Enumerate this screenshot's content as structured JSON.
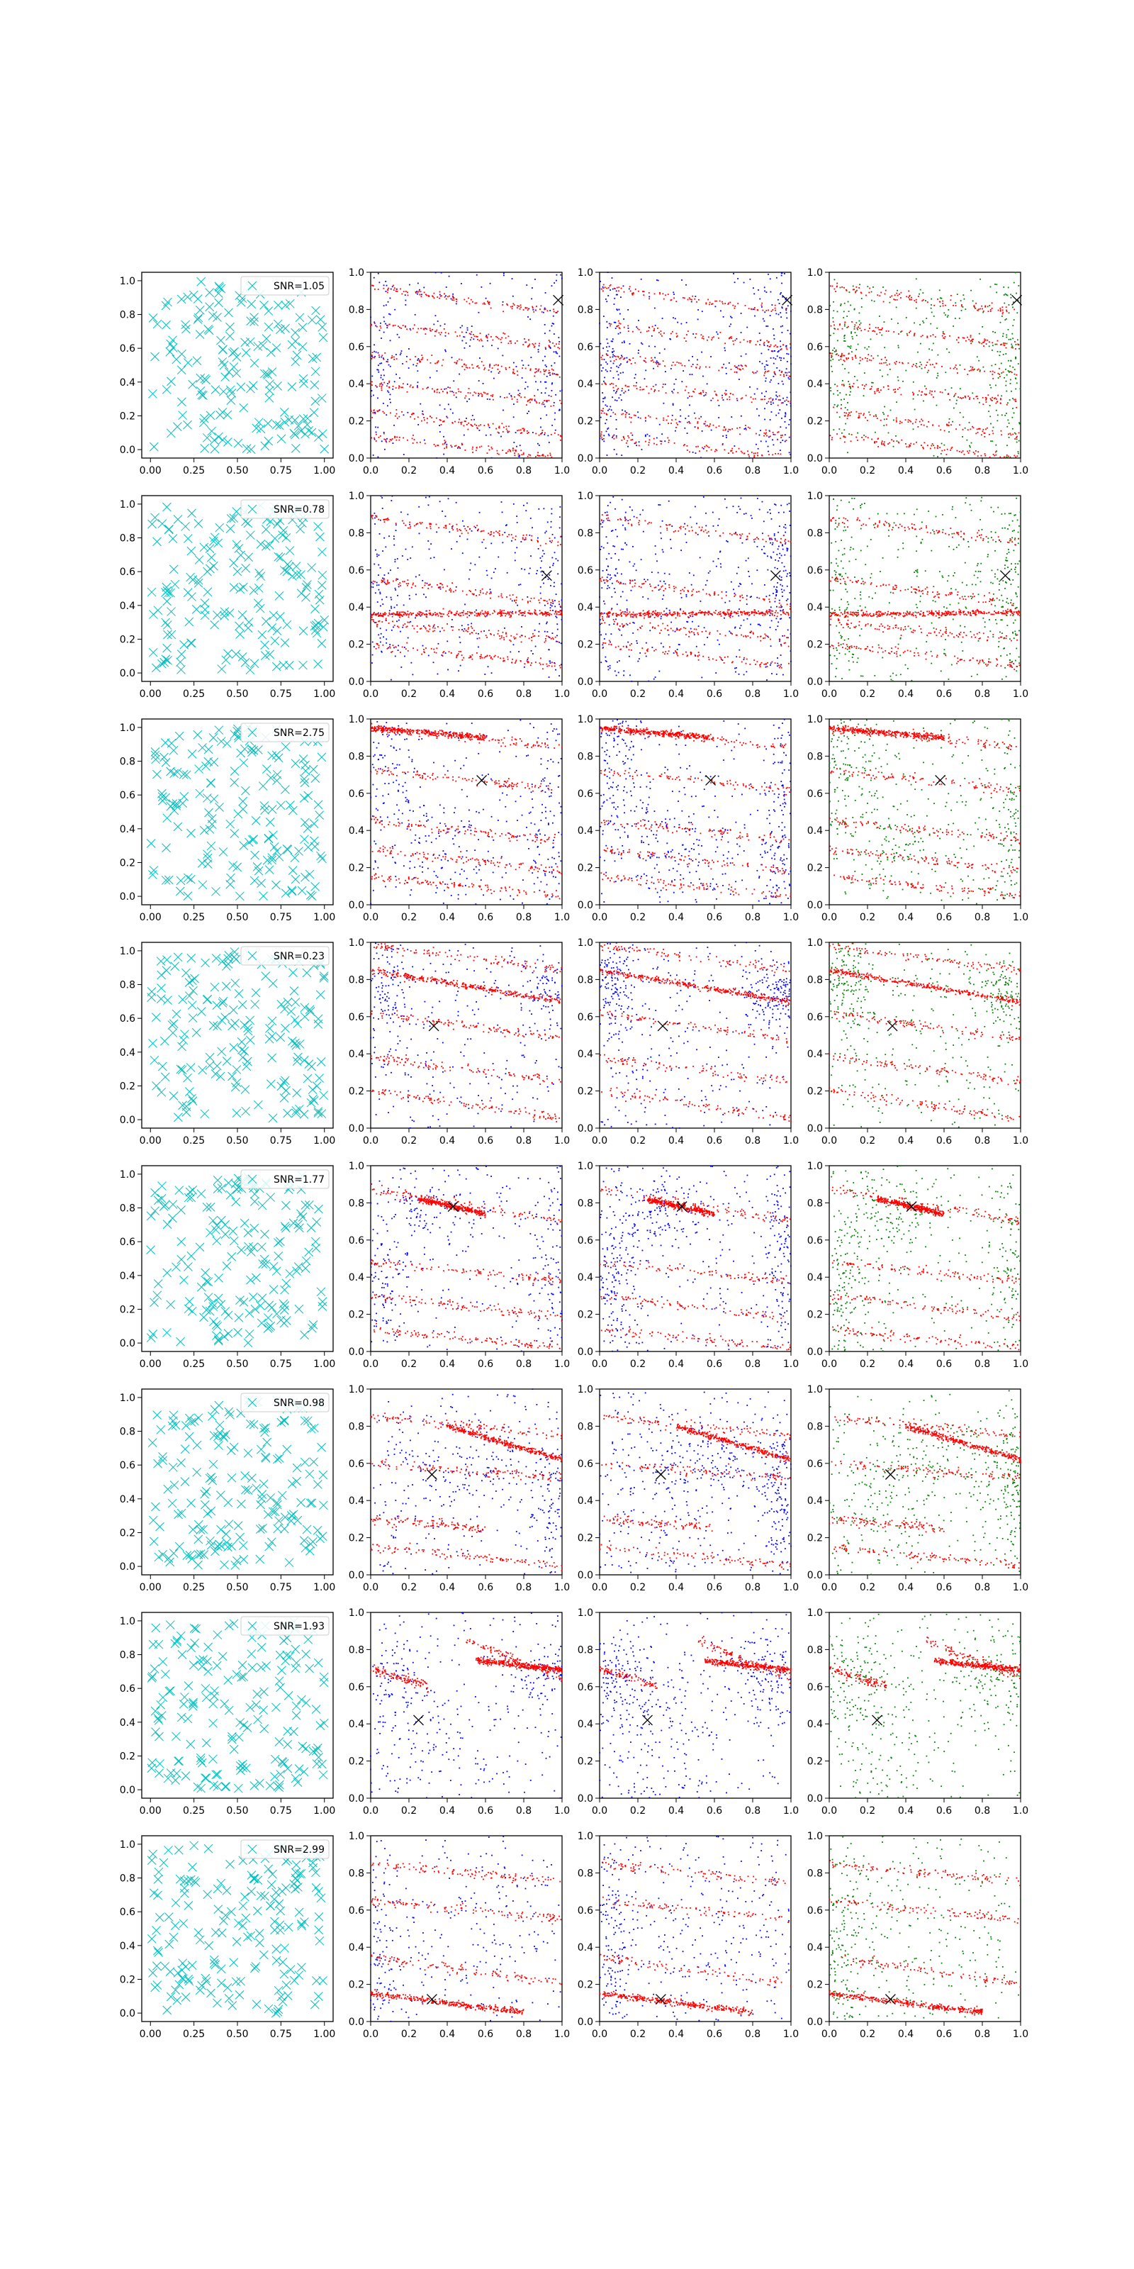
{
  "colors": {
    "crosses": "#00bfbf",
    "red": "#ff0000",
    "blue": "#0000ff",
    "green": "#008000",
    "marker": "#000000",
    "axis": "#000000",
    "background": "#ffffff"
  },
  "legend_prefix": "SNR=",
  "chart_data": {
    "type": "scatter",
    "grid": false,
    "layout": "8 rows x 4 columns of scatter panels",
    "col0_axes": {
      "xlim": [
        -0.05,
        1.05
      ],
      "ylim": [
        -0.05,
        1.05
      ],
      "xticks": [
        "0.00",
        "0.25",
        "0.50",
        "0.75",
        "1.00"
      ],
      "yticks": [
        "0.0",
        "0.2",
        "0.4",
        "0.6",
        "0.8",
        "1.0"
      ]
    },
    "col123_axes": {
      "xlim": [
        0,
        1
      ],
      "ylim": [
        0,
        1
      ],
      "xticks": [
        "0.0",
        "0.2",
        "0.4",
        "0.6",
        "0.8",
        "1.0"
      ],
      "yticks": [
        "0.0",
        "0.2",
        "0.4",
        "0.6",
        "0.8",
        "1.0"
      ]
    },
    "panel_types": [
      "random 'x' markers (cyan), legend shows SNR",
      "red + blue point clouds, black X",
      "red + blue point clouds, black X",
      "red + green point clouds, black X"
    ],
    "legend_position": "top-right",
    "rows": [
      {
        "snr": "1.05",
        "target": [
          0.98,
          0.85
        ],
        "red_bands": [
          [
            0.0,
            0.92,
            1.0,
            0.78
          ],
          [
            0.0,
            0.72,
            1.0,
            0.6
          ],
          [
            0.0,
            0.55,
            1.0,
            0.45
          ],
          [
            0.0,
            0.4,
            1.0,
            0.3
          ],
          [
            0.0,
            0.25,
            1.0,
            0.12
          ],
          [
            0.0,
            0.12,
            1.0,
            0.0
          ]
        ],
        "dense_band": null,
        "blue_clusters": [
          [
            0.05,
            0.5,
            0.06,
            0.3
          ],
          [
            0.95,
            0.5,
            0.05,
            0.3
          ],
          [
            0.5,
            0.5,
            0.35,
            0.35
          ]
        ]
      },
      {
        "snr": "0.78",
        "target": [
          0.92,
          0.57
        ],
        "red_bands": [
          [
            0.0,
            0.88,
            1.0,
            0.75
          ],
          [
            0.0,
            0.55,
            1.0,
            0.42
          ],
          [
            0.0,
            0.32,
            1.0,
            0.22
          ],
          [
            0.0,
            0.2,
            1.0,
            0.08
          ]
        ],
        "dense_band": [
          0.0,
          0.36,
          1.0,
          0.37
        ],
        "blue_clusters": [
          [
            0.05,
            0.45,
            0.06,
            0.35
          ],
          [
            0.95,
            0.45,
            0.05,
            0.3
          ],
          [
            0.6,
            0.6,
            0.3,
            0.3
          ]
        ]
      },
      {
        "snr": "2.75",
        "target": [
          0.58,
          0.67
        ],
        "red_bands": [
          [
            0.0,
            0.95,
            1.0,
            0.85
          ],
          [
            0.0,
            0.72,
            1.0,
            0.62
          ],
          [
            0.0,
            0.45,
            1.0,
            0.35
          ],
          [
            0.0,
            0.3,
            1.0,
            0.18
          ],
          [
            0.0,
            0.15,
            1.0,
            0.05
          ]
        ],
        "dense_band": [
          0.0,
          0.95,
          0.6,
          0.9
        ],
        "blue_clusters": [
          [
            0.08,
            0.75,
            0.08,
            0.2
          ],
          [
            0.95,
            0.45,
            0.05,
            0.3
          ],
          [
            0.4,
            0.3,
            0.2,
            0.15
          ]
        ]
      },
      {
        "snr": "0.23",
        "target": [
          0.33,
          0.55
        ],
        "red_bands": [
          [
            0.0,
            0.98,
            1.0,
            0.85
          ],
          [
            0.0,
            0.62,
            1.0,
            0.48
          ],
          [
            0.0,
            0.38,
            1.0,
            0.25
          ],
          [
            0.0,
            0.2,
            1.0,
            0.05
          ]
        ],
        "dense_band": [
          0.0,
          0.85,
          1.0,
          0.68
        ],
        "blue_clusters": [
          [
            0.92,
            0.72,
            0.08,
            0.08
          ],
          [
            0.08,
            0.75,
            0.06,
            0.15
          ],
          [
            0.5,
            0.5,
            0.4,
            0.4
          ]
        ]
      },
      {
        "snr": "1.77",
        "target": [
          0.43,
          0.78
        ],
        "red_bands": [
          [
            0.0,
            0.88,
            1.0,
            0.7
          ],
          [
            0.0,
            0.48,
            1.0,
            0.38
          ],
          [
            0.0,
            0.3,
            1.0,
            0.18
          ],
          [
            0.0,
            0.12,
            1.0,
            0.02
          ]
        ],
        "dense_band": [
          0.25,
          0.82,
          0.6,
          0.74
        ],
        "blue_clusters": [
          [
            0.08,
            0.35,
            0.06,
            0.2
          ],
          [
            0.3,
            0.75,
            0.15,
            0.12
          ],
          [
            0.95,
            0.5,
            0.05,
            0.3
          ]
        ]
      },
      {
        "snr": "0.98",
        "target": [
          0.32,
          0.54
        ],
        "red_bands": [
          [
            0.0,
            0.6,
            1.0,
            0.52
          ],
          [
            0.0,
            0.3,
            0.6,
            0.25
          ],
          [
            0.0,
            0.15,
            1.0,
            0.05
          ],
          [
            0.0,
            0.85,
            1.0,
            0.75
          ]
        ],
        "dense_band": [
          0.4,
          0.8,
          1.0,
          0.62
        ],
        "blue_clusters": [
          [
            0.6,
            0.6,
            0.2,
            0.12
          ],
          [
            0.95,
            0.45,
            0.05,
            0.2
          ],
          [
            0.2,
            0.4,
            0.2,
            0.3
          ]
        ]
      },
      {
        "snr": "1.93",
        "target": [
          0.25,
          0.42
        ],
        "red_bands": [
          [
            0.0,
            0.7,
            0.3,
            0.6
          ],
          [
            0.5,
            0.85,
            1.0,
            0.65
          ]
        ],
        "dense_band": [
          0.55,
          0.74,
          1.0,
          0.69
        ],
        "blue_clusters": [
          [
            0.1,
            0.65,
            0.1,
            0.12
          ],
          [
            0.9,
            0.65,
            0.1,
            0.12
          ],
          [
            0.25,
            0.3,
            0.2,
            0.2
          ]
        ]
      },
      {
        "snr": "2.99",
        "target": [
          0.32,
          0.12
        ],
        "red_bands": [
          [
            0.0,
            0.35,
            1.0,
            0.2
          ],
          [
            0.0,
            0.65,
            1.0,
            0.55
          ],
          [
            0.0,
            0.85,
            1.0,
            0.75
          ]
        ],
        "dense_band": [
          0.0,
          0.15,
          0.8,
          0.05
        ],
        "blue_clusters": [
          [
            0.07,
            0.35,
            0.06,
            0.3
          ],
          [
            0.5,
            0.45,
            0.35,
            0.35
          ]
        ]
      }
    ]
  }
}
